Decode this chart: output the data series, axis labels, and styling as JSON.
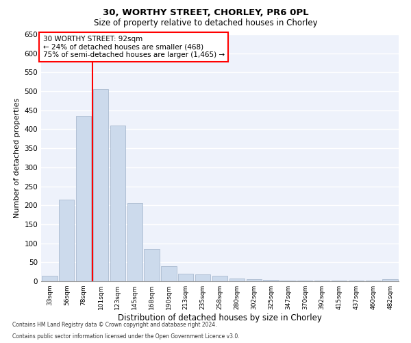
{
  "title1": "30, WORTHY STREET, CHORLEY, PR6 0PL",
  "title2": "Size of property relative to detached houses in Chorley",
  "xlabel": "Distribution of detached houses by size in Chorley",
  "ylabel": "Number of detached properties",
  "categories": [
    "33sqm",
    "56sqm",
    "78sqm",
    "101sqm",
    "123sqm",
    "145sqm",
    "168sqm",
    "190sqm",
    "213sqm",
    "235sqm",
    "258sqm",
    "280sqm",
    "302sqm",
    "325sqm",
    "347sqm",
    "370sqm",
    "392sqm",
    "415sqm",
    "437sqm",
    "460sqm",
    "482sqm"
  ],
  "values": [
    15,
    215,
    435,
    505,
    410,
    205,
    85,
    40,
    20,
    18,
    14,
    8,
    5,
    3,
    2,
    1,
    1,
    1,
    1,
    1,
    5
  ],
  "bar_color": "#ccdaec",
  "bar_edge_color": "#aabbd0",
  "red_line_x": 2.5,
  "annotation_line1": "30 WORTHY STREET: 92sqm",
  "annotation_line2": "← 24% of detached houses are smaller (468)",
  "annotation_line3": "75% of semi-detached houses are larger (1,465) →",
  "ylim": [
    0,
    650
  ],
  "yticks": [
    0,
    50,
    100,
    150,
    200,
    250,
    300,
    350,
    400,
    450,
    500,
    550,
    600,
    650
  ],
  "background_color": "#eef2fb",
  "grid_color": "#ffffff",
  "footer1": "Contains HM Land Registry data © Crown copyright and database right 2024.",
  "footer2": "Contains public sector information licensed under the Open Government Licence v3.0."
}
